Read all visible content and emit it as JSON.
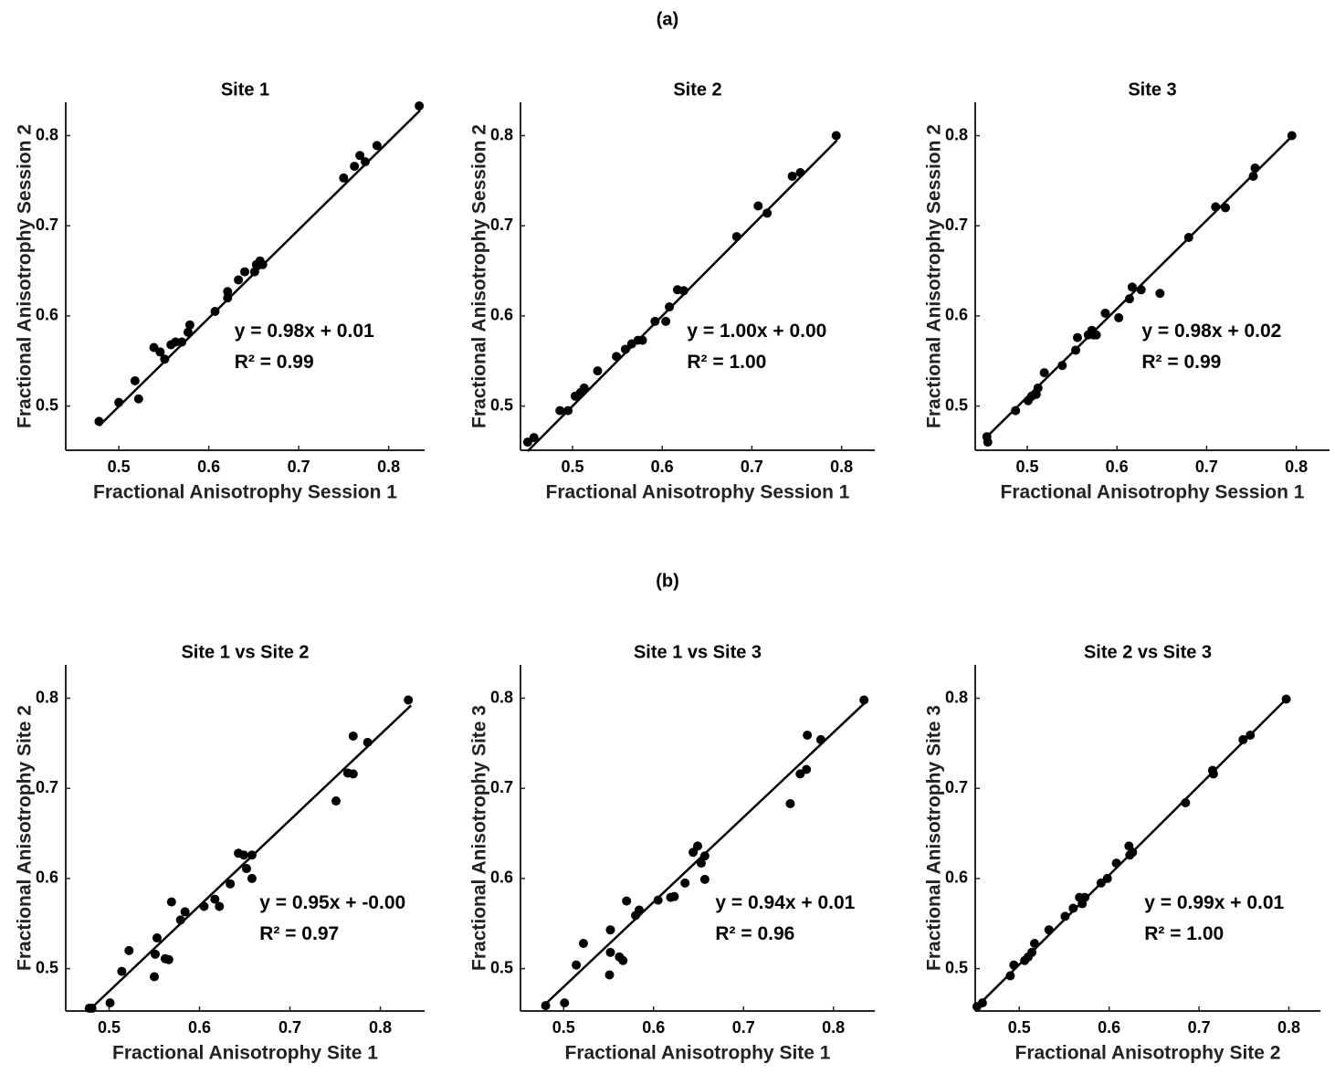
{
  "panel_labels": [
    "(a)",
    "(b)"
  ],
  "chart_data": [
    {
      "type": "scatter",
      "title": "Site 1",
      "xlabel": "Fractional Anisotrophy Session 1",
      "ylabel": "Fractional Anisotrophy Session 2",
      "xlim": [
        0.441,
        0.84
      ],
      "ylim": [
        0.451,
        0.837
      ],
      "xticks": [
        0.5,
        0.6,
        0.7,
        0.8
      ],
      "yticks": [
        0.5,
        0.6,
        0.7,
        0.8
      ],
      "color": "#000000",
      "x": [
        0.478,
        0.5,
        0.518,
        0.522,
        0.539,
        0.546,
        0.551,
        0.558,
        0.563,
        0.57,
        0.577,
        0.579,
        0.607,
        0.621,
        0.621,
        0.633,
        0.64,
        0.651,
        0.653,
        0.657,
        0.66,
        0.75,
        0.762,
        0.768,
        0.774,
        0.787,
        0.834
      ],
      "y": [
        0.483,
        0.504,
        0.528,
        0.508,
        0.565,
        0.56,
        0.552,
        0.568,
        0.571,
        0.571,
        0.582,
        0.59,
        0.605,
        0.62,
        0.627,
        0.64,
        0.649,
        0.649,
        0.657,
        0.661,
        0.657,
        0.753,
        0.766,
        0.778,
        0.771,
        0.789,
        0.833
      ],
      "fit_line": {
        "x": [
          0.478,
          0.835
        ],
        "y": [
          0.478,
          0.828
        ]
      },
      "annotation": [
        "y = 0.98x + 0.01",
        "R² = 0.99"
      ]
    },
    {
      "type": "scatter",
      "title": "Site 2",
      "xlabel": "Fractional Anisotrophy Session 1",
      "ylabel": "Fractional Anisotrophy Session 2",
      "xlim": [
        0.442,
        0.837
      ],
      "ylim": [
        0.451,
        0.837
      ],
      "xticks": [
        0.5,
        0.6,
        0.7,
        0.8
      ],
      "yticks": [
        0.5,
        0.6,
        0.7,
        0.8
      ],
      "color": "#000000",
      "x": [
        0.45,
        0.457,
        0.486,
        0.495,
        0.503,
        0.509,
        0.513,
        0.528,
        0.549,
        0.559,
        0.566,
        0.573,
        0.578,
        0.592,
        0.604,
        0.608,
        0.617,
        0.624,
        0.683,
        0.707,
        0.717,
        0.745,
        0.754,
        0.794
      ],
      "y": [
        0.46,
        0.465,
        0.495,
        0.495,
        0.511,
        0.515,
        0.52,
        0.539,
        0.555,
        0.563,
        0.569,
        0.573,
        0.573,
        0.594,
        0.594,
        0.61,
        0.629,
        0.628,
        0.688,
        0.722,
        0.714,
        0.755,
        0.759,
        0.8
      ],
      "fit_line": {
        "x": [
          0.45,
          0.795
        ],
        "y": [
          0.45,
          0.795
        ]
      },
      "annotation": [
        "y = 1.00x + 0.00",
        "R² = 1.00"
      ]
    },
    {
      "type": "scatter",
      "title": "Site 3",
      "xlabel": "Fractional Anisotrophy Session 1",
      "ylabel": "Fractional Anisotrophy Session 2",
      "xlim": [
        0.442,
        0.837
      ],
      "ylim": [
        0.451,
        0.837
      ],
      "xticks": [
        0.5,
        0.6,
        0.7,
        0.8
      ],
      "yticks": [
        0.5,
        0.6,
        0.7,
        0.8
      ],
      "color": "#000000",
      "x": [
        0.455,
        0.456,
        0.487,
        0.501,
        0.505,
        0.51,
        0.512,
        0.519,
        0.539,
        0.554,
        0.556,
        0.568,
        0.572,
        0.574,
        0.577,
        0.587,
        0.602,
        0.614,
        0.617,
        0.627,
        0.648,
        0.68,
        0.71,
        0.721,
        0.752,
        0.754,
        0.795
      ],
      "y": [
        0.466,
        0.46,
        0.495,
        0.506,
        0.511,
        0.513,
        0.52,
        0.537,
        0.545,
        0.562,
        0.576,
        0.579,
        0.584,
        0.579,
        0.579,
        0.603,
        0.598,
        0.619,
        0.632,
        0.629,
        0.625,
        0.687,
        0.721,
        0.72,
        0.755,
        0.764,
        0.8
      ],
      "fit_line": {
        "x": [
          0.455,
          0.797
        ],
        "y": [
          0.466,
          0.801
        ]
      },
      "annotation": [
        "y = 0.98x + 0.02",
        "R² = 0.99"
      ]
    },
    {
      "type": "scatter",
      "title": "Site 1 vs Site 2",
      "xlabel": "Fractional Anisotrophy Site 1",
      "ylabel": "Fractional Anisotrophy Site 2",
      "xlim": [
        0.452,
        0.849
      ],
      "ylim": [
        0.453,
        0.837
      ],
      "xticks": [
        0.5,
        0.6,
        0.7,
        0.8
      ],
      "yticks": [
        0.5,
        0.6,
        0.7,
        0.8
      ],
      "color": "#000000",
      "x": [
        0.478,
        0.481,
        0.501,
        0.514,
        0.522,
        0.55,
        0.551,
        0.553,
        0.562,
        0.566,
        0.569,
        0.579,
        0.584,
        0.605,
        0.617,
        0.622,
        0.634,
        0.643,
        0.649,
        0.652,
        0.658,
        0.658,
        0.751,
        0.764,
        0.77,
        0.77,
        0.786,
        0.831
      ],
      "y": [
        0.456,
        0.456,
        0.462,
        0.497,
        0.52,
        0.491,
        0.516,
        0.534,
        0.511,
        0.51,
        0.574,
        0.554,
        0.563,
        0.569,
        0.577,
        0.569,
        0.594,
        0.628,
        0.626,
        0.611,
        0.6,
        0.626,
        0.686,
        0.717,
        0.716,
        0.758,
        0.751,
        0.798
      ],
      "fit_line": {
        "x": [
          0.478,
          0.834
        ],
        "y": [
          0.454,
          0.792
        ]
      },
      "annotation": [
        "y = 0.95x + -0.00",
        "R² = 0.97"
      ]
    },
    {
      "type": "scatter",
      "title": "Site 1 vs Site 3",
      "xlabel": "Fractional Anisotrophy Site 1",
      "ylabel": "Fractional Anisotrophy Site 3",
      "xlim": [
        0.452,
        0.846
      ],
      "ylim": [
        0.453,
        0.837
      ],
      "xticks": [
        0.5,
        0.6,
        0.7,
        0.8
      ],
      "yticks": [
        0.5,
        0.6,
        0.7,
        0.8
      ],
      "color": "#000000",
      "x": [
        0.48,
        0.501,
        0.514,
        0.522,
        0.551,
        0.552,
        0.552,
        0.562,
        0.566,
        0.57,
        0.58,
        0.584,
        0.605,
        0.619,
        0.623,
        0.635,
        0.644,
        0.649,
        0.653,
        0.657,
        0.657,
        0.752,
        0.763,
        0.77,
        0.771,
        0.786,
        0.834
      ],
      "y": [
        0.459,
        0.462,
        0.504,
        0.528,
        0.493,
        0.518,
        0.543,
        0.513,
        0.509,
        0.575,
        0.559,
        0.565,
        0.576,
        0.579,
        0.58,
        0.595,
        0.629,
        0.636,
        0.617,
        0.599,
        0.625,
        0.683,
        0.716,
        0.721,
        0.759,
        0.754,
        0.798
      ],
      "fit_line": {
        "x": [
          0.48,
          0.834
        ],
        "y": [
          0.461,
          0.794
        ]
      },
      "annotation": [
        "y = 0.94x + 0.01",
        "R² = 0.96"
      ]
    },
    {
      "type": "scatter",
      "title": "Site 2 vs Site 3",
      "xlabel": "Fractional Anisotrophy Site 2",
      "ylabel": "Fractional Anisotrophy Site 3",
      "xlim": [
        0.451,
        0.835
      ],
      "ylim": [
        0.453,
        0.837
      ],
      "xticks": [
        0.5,
        0.6,
        0.7,
        0.8
      ],
      "yticks": [
        0.5,
        0.6,
        0.7,
        0.8
      ],
      "color": "#000000",
      "x": [
        0.453,
        0.459,
        0.49,
        0.494,
        0.506,
        0.51,
        0.514,
        0.517,
        0.533,
        0.551,
        0.56,
        0.567,
        0.57,
        0.573,
        0.591,
        0.598,
        0.608,
        0.622,
        0.623,
        0.626,
        0.685,
        0.715,
        0.716,
        0.749,
        0.757,
        0.797
      ],
      "y": [
        0.458,
        0.462,
        0.492,
        0.504,
        0.509,
        0.513,
        0.518,
        0.528,
        0.543,
        0.558,
        0.567,
        0.579,
        0.572,
        0.579,
        0.595,
        0.6,
        0.617,
        0.636,
        0.626,
        0.629,
        0.684,
        0.72,
        0.716,
        0.754,
        0.759,
        0.799
      ],
      "fit_line": {
        "x": [
          0.453,
          0.797
        ],
        "y": [
          0.458,
          0.799
        ]
      },
      "annotation": [
        "y = 0.99x + 0.01",
        "R² = 1.00"
      ]
    }
  ]
}
